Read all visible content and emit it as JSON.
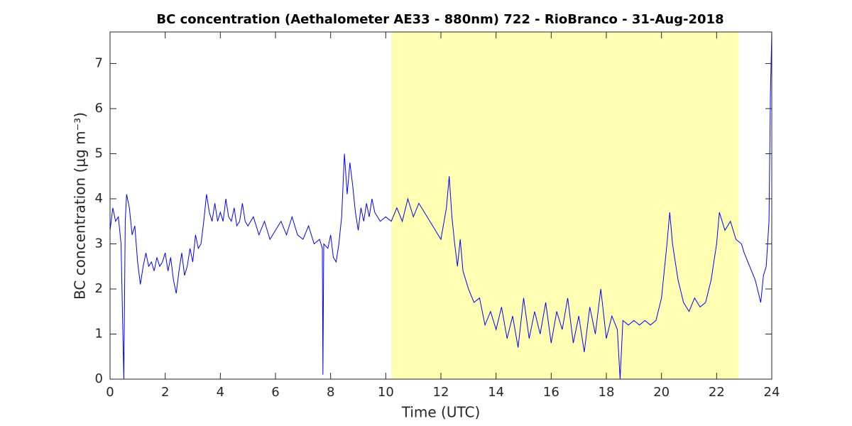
{
  "chart_data": {
    "type": "line",
    "title": "BC concentration (Aethalometer AE33 - 880nm) 722 - RioBranco - 31-Aug-2018",
    "xlabel": "Time (UTC)",
    "ylabel": "BC concentration (μg m⁻³)",
    "xlim": [
      0,
      24
    ],
    "xticks": [
      0,
      2,
      4,
      6,
      8,
      10,
      12,
      14,
      16,
      18,
      20,
      22,
      24
    ],
    "ylim": [
      0,
      7.7
    ],
    "yticks": [
      0,
      1,
      2,
      3,
      4,
      5,
      6,
      7
    ],
    "shade_x": [
      10.2,
      22.8
    ],
    "shade_color": "#ffffb3",
    "series": [
      {
        "name": "BC",
        "color": "#0000ff",
        "x": [
          0,
          0.1,
          0.2,
          0.3,
          0.4,
          0.5,
          0.55,
          0.6,
          0.7,
          0.8,
          0.9,
          1.0,
          1.1,
          1.2,
          1.3,
          1.4,
          1.5,
          1.6,
          1.7,
          1.8,
          1.9,
          2.0,
          2.1,
          2.2,
          2.3,
          2.4,
          2.5,
          2.6,
          2.7,
          2.8,
          2.9,
          3.0,
          3.1,
          3.2,
          3.3,
          3.4,
          3.5,
          3.6,
          3.7,
          3.8,
          3.9,
          4.0,
          4.1,
          4.2,
          4.3,
          4.4,
          4.5,
          4.6,
          4.7,
          4.8,
          4.9,
          5.0,
          5.2,
          5.4,
          5.6,
          5.8,
          6.0,
          6.2,
          6.4,
          6.6,
          6.8,
          7.0,
          7.2,
          7.4,
          7.6,
          7.7,
          7.72,
          7.75,
          7.9,
          8.0,
          8.1,
          8.2,
          8.3,
          8.4,
          8.5,
          8.6,
          8.7,
          8.8,
          8.9,
          9.0,
          9.1,
          9.2,
          9.3,
          9.4,
          9.5,
          9.6,
          9.8,
          10.0,
          10.2,
          10.4,
          10.6,
          10.8,
          11.0,
          11.2,
          11.4,
          11.6,
          11.8,
          12.0,
          12.2,
          12.3,
          12.4,
          12.5,
          12.6,
          12.7,
          12.8,
          12.9,
          13.0,
          13.2,
          13.4,
          13.6,
          13.8,
          14.0,
          14.2,
          14.4,
          14.6,
          14.8,
          15.0,
          15.2,
          15.4,
          15.6,
          15.8,
          16.0,
          16.2,
          16.4,
          16.6,
          16.8,
          17.0,
          17.2,
          17.4,
          17.6,
          17.8,
          18.0,
          18.2,
          18.4,
          18.5,
          18.6,
          18.8,
          19.0,
          19.2,
          19.4,
          19.6,
          19.8,
          20.0,
          20.2,
          20.3,
          20.4,
          20.6,
          20.8,
          21.0,
          21.2,
          21.4,
          21.6,
          21.8,
          22.0,
          22.1,
          22.3,
          22.5,
          22.7,
          22.9,
          23.0,
          23.2,
          23.4,
          23.6,
          23.7,
          23.8,
          23.9,
          23.95,
          24.0
        ],
        "values": [
          3.3,
          3.8,
          3.5,
          3.6,
          3.0,
          0.0,
          3.5,
          4.1,
          3.8,
          3.2,
          3.4,
          2.6,
          2.1,
          2.5,
          2.8,
          2.5,
          2.6,
          2.4,
          2.7,
          2.5,
          2.6,
          2.8,
          2.4,
          2.7,
          2.2,
          1.9,
          2.4,
          2.8,
          2.3,
          2.5,
          2.9,
          2.6,
          3.2,
          2.9,
          3.0,
          3.5,
          4.1,
          3.7,
          3.5,
          3.9,
          3.5,
          3.7,
          3.5,
          4.0,
          3.6,
          3.5,
          3.8,
          3.4,
          3.5,
          3.9,
          3.5,
          3.4,
          3.6,
          3.2,
          3.5,
          3.1,
          3.3,
          3.5,
          3.2,
          3.6,
          3.2,
          3.1,
          3.4,
          3.0,
          3.1,
          2.9,
          0.1,
          3.0,
          2.9,
          3.2,
          2.7,
          2.6,
          3.0,
          3.6,
          5.0,
          4.1,
          4.8,
          4.3,
          3.7,
          3.3,
          3.8,
          3.5,
          3.9,
          3.6,
          4.0,
          3.7,
          3.5,
          3.6,
          3.5,
          3.8,
          3.5,
          4.0,
          3.6,
          3.9,
          3.7,
          3.5,
          3.3,
          3.1,
          3.8,
          4.5,
          3.6,
          3.0,
          2.5,
          3.1,
          2.4,
          2.2,
          2.0,
          1.7,
          1.8,
          1.2,
          1.5,
          1.1,
          1.6,
          0.9,
          1.4,
          0.7,
          1.8,
          0.9,
          1.5,
          1.0,
          1.7,
          0.8,
          1.5,
          1.1,
          1.8,
          0.8,
          1.4,
          0.6,
          1.6,
          1.0,
          2.0,
          0.9,
          1.4,
          1.1,
          0.0,
          1.3,
          1.2,
          1.3,
          1.2,
          1.3,
          1.2,
          1.3,
          1.8,
          3.0,
          3.7,
          3.0,
          2.2,
          1.7,
          1.5,
          1.8,
          1.6,
          1.7,
          2.2,
          3.0,
          3.7,
          3.3,
          3.5,
          3.1,
          3.0,
          2.8,
          2.5,
          2.2,
          1.7,
          2.3,
          2.5,
          3.5,
          6.3,
          7.7
        ]
      }
    ]
  }
}
